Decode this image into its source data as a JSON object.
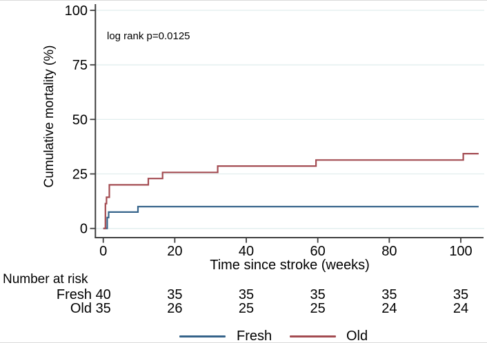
{
  "figure": {
    "annotation": "log rank p=0.0125",
    "number_at_risk_label": "Number at risk",
    "risk_table": {
      "times": [
        0,
        20,
        40,
        60,
        80,
        100
      ],
      "rows": [
        {
          "label": "Fresh",
          "values": [
            40,
            35,
            35,
            35,
            35,
            35
          ]
        },
        {
          "label": "Old",
          "values": [
            35,
            26,
            25,
            25,
            24,
            24
          ]
        }
      ]
    },
    "legend": [
      {
        "label": "Fresh",
        "color": "#35638a"
      },
      {
        "label": "Old",
        "color": "#a34b51"
      }
    ]
  },
  "chart_data": {
    "type": "line",
    "subtype": "kaplan-meier-step",
    "title": "",
    "xlabel": "Time since stroke (weeks)",
    "ylabel": "Cumulative mortality (%)",
    "annotation": "log rank p=0.0125",
    "xlim": [
      0,
      106
    ],
    "ylim": [
      0,
      100
    ],
    "x_ticks": [
      0,
      20,
      40,
      60,
      80,
      100
    ],
    "y_ticks": [
      0,
      25,
      50,
      75,
      100
    ],
    "grid": true,
    "grid_color": "#e1eeee",
    "axis_color": "#3d3d3d",
    "legend_position": "bottom-center",
    "series": [
      {
        "name": "Fresh",
        "color": "#35638a",
        "points": [
          [
            0,
            0
          ],
          [
            1.1,
            5
          ],
          [
            1.5,
            7.5
          ],
          [
            9.7,
            10
          ],
          [
            105,
            10
          ]
        ]
      },
      {
        "name": "Old",
        "color": "#a34b51",
        "points": [
          [
            0,
            0
          ],
          [
            0.6,
            11.4
          ],
          [
            0.9,
            14.3
          ],
          [
            1.7,
            20
          ],
          [
            12.6,
            22.9
          ],
          [
            16.6,
            25.7
          ],
          [
            32,
            28.6
          ],
          [
            59.5,
            31.4
          ],
          [
            100.7,
            34.3
          ],
          [
            105,
            34.3
          ]
        ]
      }
    ]
  }
}
